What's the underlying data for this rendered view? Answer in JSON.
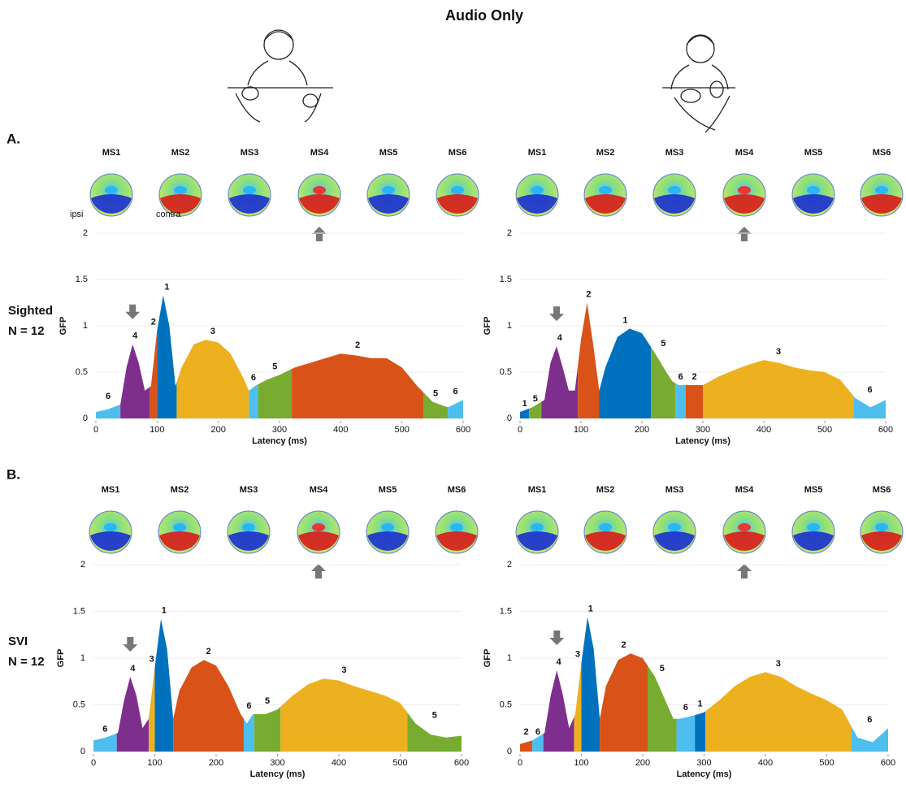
{
  "title": "Audio Only",
  "panel_labels": [
    "A.",
    "B."
  ],
  "groups": [
    [
      "Sighted",
      "N = 12"
    ],
    [
      "SVI",
      "N = 12"
    ]
  ],
  "chart_data": [
    {
      "type": "area",
      "xlabel": "Latency (ms)",
      "ylabel": "GFP",
      "xlim": [
        0,
        600
      ],
      "ylim": [
        0,
        2
      ],
      "xticks": [
        0,
        100,
        200,
        300,
        400,
        500,
        600
      ],
      "yticks": [
        0,
        0.5,
        1,
        1.5,
        2
      ],
      "grid": true,
      "microstates": [
        "MS1",
        "MS2",
        "MS3",
        "MS4",
        "MS5",
        "MS6"
      ],
      "annotations": [
        "ipsi",
        "contra"
      ],
      "x": [
        0,
        20,
        40,
        50,
        60,
        70,
        80,
        90,
        100,
        110,
        120,
        130,
        140,
        160,
        180,
        200,
        220,
        240,
        250,
        260,
        280,
        300,
        325,
        350,
        375,
        400,
        425,
        450,
        475,
        500,
        525,
        550,
        575,
        600
      ],
      "values": [
        0.07,
        0.1,
        0.15,
        0.55,
        0.8,
        0.6,
        0.3,
        0.35,
        0.95,
        1.33,
        1.0,
        0.35,
        0.55,
        0.8,
        0.85,
        0.82,
        0.7,
        0.45,
        0.3,
        0.35,
        0.42,
        0.47,
        0.55,
        0.6,
        0.65,
        0.7,
        0.68,
        0.65,
        0.65,
        0.55,
        0.35,
        0.18,
        0.12,
        0.2
      ],
      "segments": [
        {
          "state": 6,
          "start": 0,
          "end": 40,
          "color": "#4dbeee"
        },
        {
          "state": 4,
          "start": 40,
          "end": 88,
          "color": "#7e2f8e"
        },
        {
          "state": 2,
          "start": 88,
          "end": 100,
          "color": "#d95319"
        },
        {
          "state": 1,
          "start": 100,
          "end": 132,
          "color": "#0072bd"
        },
        {
          "state": 3,
          "start": 132,
          "end": 250,
          "color": "#edb120"
        },
        {
          "state": 6,
          "start": 250,
          "end": 265,
          "color": "#4dbeee"
        },
        {
          "state": 5,
          "start": 265,
          "end": 320,
          "color": "#77ac30"
        },
        {
          "state": 2,
          "start": 320,
          "end": 535,
          "color": "#d95319"
        },
        {
          "state": 5,
          "start": 535,
          "end": 575,
          "color": "#77ac30"
        },
        {
          "state": 6,
          "start": 575,
          "end": 600,
          "color": "#4dbeee"
        }
      ]
    },
    {
      "type": "area",
      "xlabel": "Latency (ms)",
      "ylabel": "GFP",
      "xlim": [
        0,
        600
      ],
      "ylim": [
        0,
        2
      ],
      "xticks": [
        0,
        100,
        200,
        300,
        400,
        500,
        600
      ],
      "yticks": [
        0,
        0.5,
        1,
        1.5,
        2
      ],
      "grid": true,
      "microstates": [
        "MS1",
        "MS2",
        "MS3",
        "MS4",
        "MS5",
        "MS6"
      ],
      "x": [
        0,
        20,
        40,
        50,
        60,
        70,
        80,
        90,
        100,
        110,
        120,
        130,
        140,
        160,
        180,
        200,
        220,
        240,
        250,
        260,
        280,
        300,
        325,
        350,
        375,
        400,
        425,
        450,
        475,
        500,
        525,
        550,
        575,
        600
      ],
      "values": [
        0.07,
        0.12,
        0.2,
        0.6,
        0.78,
        0.55,
        0.3,
        0.3,
        0.85,
        1.25,
        0.8,
        0.3,
        0.55,
        0.88,
        0.97,
        0.92,
        0.72,
        0.5,
        0.4,
        0.36,
        0.36,
        0.36,
        0.45,
        0.52,
        0.58,
        0.63,
        0.6,
        0.55,
        0.52,
        0.5,
        0.42,
        0.22,
        0.12,
        0.2
      ],
      "segments": [
        {
          "state": 1,
          "start": 0,
          "end": 15,
          "color": "#0072bd"
        },
        {
          "state": 5,
          "start": 15,
          "end": 35,
          "color": "#77ac30"
        },
        {
          "state": 4,
          "start": 35,
          "end": 95,
          "color": "#7e2f8e"
        },
        {
          "state": 2,
          "start": 95,
          "end": 130,
          "color": "#d95319"
        },
        {
          "state": 1,
          "start": 130,
          "end": 215,
          "color": "#0072bd"
        },
        {
          "state": 5,
          "start": 215,
          "end": 255,
          "color": "#77ac30"
        },
        {
          "state": 6,
          "start": 255,
          "end": 272,
          "color": "#4dbeee"
        },
        {
          "state": 2,
          "start": 272,
          "end": 300,
          "color": "#d95319"
        },
        {
          "state": 3,
          "start": 300,
          "end": 548,
          "color": "#edb120"
        },
        {
          "state": 6,
          "start": 548,
          "end": 600,
          "color": "#4dbeee"
        }
      ]
    },
    {
      "type": "area",
      "xlabel": "Latency (ms)",
      "ylabel": "GFP",
      "xlim": [
        0,
        600
      ],
      "ylim": [
        0,
        2
      ],
      "xticks": [
        0,
        100,
        200,
        300,
        400,
        500,
        600
      ],
      "yticks": [
        0,
        0.5,
        1,
        1.5,
        2
      ],
      "grid": true,
      "microstates": [
        "MS1",
        "MS2",
        "MS3",
        "MS4",
        "MS5",
        "MS6"
      ],
      "x": [
        0,
        20,
        40,
        50,
        60,
        70,
        80,
        90,
        100,
        110,
        120,
        130,
        140,
        160,
        180,
        200,
        220,
        240,
        250,
        260,
        280,
        300,
        325,
        350,
        375,
        400,
        425,
        450,
        475,
        500,
        525,
        550,
        575,
        600
      ],
      "values": [
        0.12,
        0.15,
        0.2,
        0.55,
        0.8,
        0.6,
        0.25,
        0.35,
        0.9,
        1.42,
        1.1,
        0.35,
        0.65,
        0.9,
        0.98,
        0.92,
        0.7,
        0.4,
        0.3,
        0.4,
        0.4,
        0.45,
        0.6,
        0.72,
        0.78,
        0.76,
        0.7,
        0.65,
        0.6,
        0.52,
        0.3,
        0.18,
        0.15,
        0.17
      ],
      "segments": [
        {
          "state": 6,
          "start": 0,
          "end": 38,
          "color": "#4dbeee"
        },
        {
          "state": 4,
          "start": 38,
          "end": 90,
          "color": "#7e2f8e"
        },
        {
          "state": 3,
          "start": 90,
          "end": 100,
          "color": "#edb120"
        },
        {
          "state": 1,
          "start": 100,
          "end": 130,
          "color": "#0072bd"
        },
        {
          "state": 2,
          "start": 130,
          "end": 245,
          "color": "#d95319"
        },
        {
          "state": 6,
          "start": 245,
          "end": 262,
          "color": "#4dbeee"
        },
        {
          "state": 5,
          "start": 262,
          "end": 305,
          "color": "#77ac30"
        },
        {
          "state": 3,
          "start": 305,
          "end": 512,
          "color": "#edb120"
        },
        {
          "state": 5,
          "start": 512,
          "end": 600,
          "color": "#77ac30"
        }
      ]
    },
    {
      "type": "area",
      "xlabel": "Latency (ms)",
      "ylabel": "GFP",
      "xlim": [
        0,
        600
      ],
      "ylim": [
        0,
        2
      ],
      "xticks": [
        0,
        100,
        200,
        300,
        400,
        500,
        600
      ],
      "yticks": [
        0,
        0.5,
        1,
        1.5,
        2
      ],
      "grid": true,
      "microstates": [
        "MS1",
        "MS2",
        "MS3",
        "MS4",
        "MS5",
        "MS6"
      ],
      "x": [
        0,
        20,
        40,
        50,
        60,
        70,
        80,
        90,
        100,
        110,
        120,
        130,
        140,
        160,
        180,
        200,
        220,
        240,
        250,
        260,
        280,
        300,
        325,
        350,
        375,
        400,
        425,
        450,
        475,
        500,
        525,
        550,
        575,
        600
      ],
      "values": [
        0.08,
        0.12,
        0.2,
        0.6,
        0.87,
        0.6,
        0.25,
        0.4,
        0.95,
        1.44,
        1.1,
        0.35,
        0.7,
        0.98,
        1.05,
        1.0,
        0.8,
        0.5,
        0.35,
        0.35,
        0.38,
        0.42,
        0.55,
        0.7,
        0.8,
        0.85,
        0.8,
        0.7,
        0.62,
        0.55,
        0.45,
        0.15,
        0.1,
        0.25
      ],
      "segments": [
        {
          "state": 2,
          "start": 0,
          "end": 20,
          "color": "#d95319"
        },
        {
          "state": 6,
          "start": 20,
          "end": 38,
          "color": "#4dbeee"
        },
        {
          "state": 4,
          "start": 38,
          "end": 88,
          "color": "#7e2f8e"
        },
        {
          "state": 3,
          "start": 88,
          "end": 100,
          "color": "#edb120"
        },
        {
          "state": 1,
          "start": 100,
          "end": 130,
          "color": "#0072bd"
        },
        {
          "state": 2,
          "start": 130,
          "end": 208,
          "color": "#d95319"
        },
        {
          "state": 5,
          "start": 208,
          "end": 255,
          "color": "#77ac30"
        },
        {
          "state": 6,
          "start": 255,
          "end": 285,
          "color": "#4dbeee"
        },
        {
          "state": 1,
          "start": 285,
          "end": 302,
          "color": "#0072bd"
        },
        {
          "state": 3,
          "start": 302,
          "end": 540,
          "color": "#edb120"
        },
        {
          "state": 6,
          "start": 540,
          "end": 600,
          "color": "#4dbeee"
        }
      ]
    }
  ]
}
